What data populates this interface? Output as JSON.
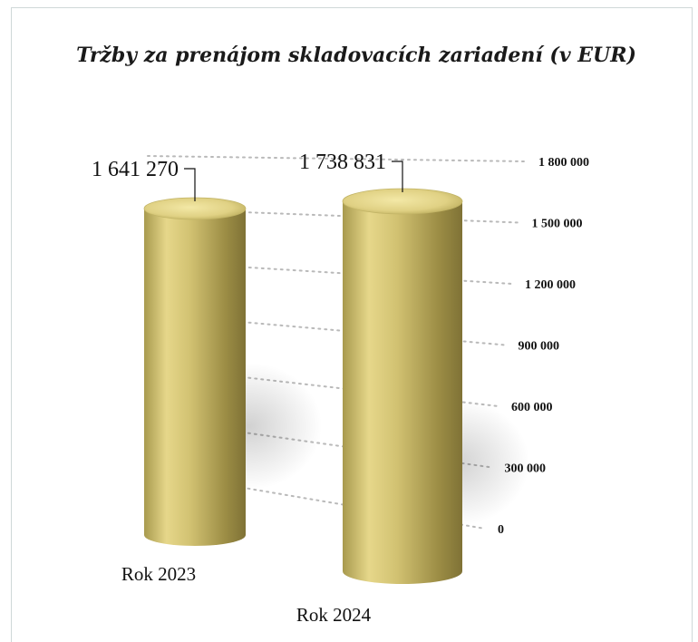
{
  "chart_data": {
    "type": "bar",
    "title": "Tržby za prenájom skladovacích zariadení (v EUR)",
    "categories": [
      "Rok 2023",
      "Rok 2024"
    ],
    "values": [
      1641270,
      1738831
    ],
    "data_labels": [
      "1 641 270",
      "1 738 831"
    ],
    "ylim": [
      0,
      1800000
    ],
    "y_ticks": [
      0,
      300000,
      600000,
      900000,
      1200000,
      1500000,
      1800000
    ],
    "y_tick_labels": [
      "0",
      "300 000",
      "600 000",
      "900 000",
      "1 200 000",
      "1 500 000",
      "1 800 000"
    ],
    "grid": true,
    "bar_color": "#c8b866"
  }
}
